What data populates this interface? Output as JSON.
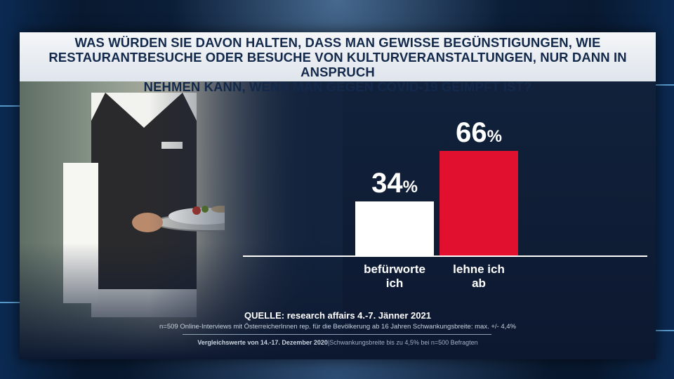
{
  "title": {
    "line1": "WAS WÜRDEN SIE DAVON HALTEN, DASS MAN GEWISSE BEGÜNSTIGUNGEN, WIE",
    "line2": "RESTAURANTBESUCHE ODER BESUCHE VON KULTURVERANSTALTUNGEN, NUR DANN IN ANSPRUCH",
    "line3": "NEHMEN KANN, WENN MAN GEGEN COVID-19 GEIMPFT IST?"
  },
  "chart_data": {
    "type": "bar",
    "categories": [
      "befürworte ich",
      "lehne ich ab"
    ],
    "category_lines": [
      [
        "befürworte",
        "ich"
      ],
      [
        "lehne ich",
        "ab"
      ]
    ],
    "values": [
      34,
      66
    ],
    "value_labels": [
      "34",
      "66"
    ],
    "unit": "%",
    "colors": [
      "#ffffff",
      "#e0102e"
    ],
    "ylim": [
      0,
      100
    ],
    "grid": false,
    "legend": "none"
  },
  "footer": {
    "source": "QUELLE: research affairs 4.-7. Jänner 2021",
    "note1": "n=509 Online-Interviews mit ÖsterreicherInnen rep. für die Bevölkerung ab 16 Jahren  Schwankungsbreite: max. +/- 4,4%",
    "note2_bold": "Vergleichswerte von 14.-17. Dezember 2020",
    "note2_rest": "|Schwankungsbreite bis zu 4,5% bei n=500 Befragten"
  }
}
